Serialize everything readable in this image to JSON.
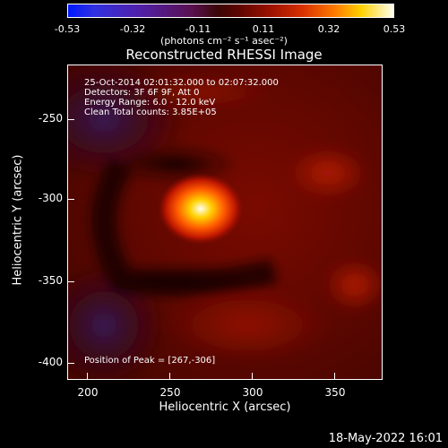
{
  "colorbar": {
    "ticks": [
      "-0.53",
      "-0.32",
      "-0.11",
      "0.11",
      "0.32",
      "0.53"
    ],
    "units": "(photons cm⁻² s⁻¹ asec⁻²)"
  },
  "title": "Reconstructed RHESSI Image",
  "info": {
    "time_range": "25-Oct-2014 02:01:32.000 to 02:07:32.000",
    "detectors": "Detectors: 3F 6F 9F, Att 0",
    "energy": "Energy Range: 6.0 - 12.0 keV",
    "clean_counts": "Clean    Total counts: 3.85E+05",
    "peak": "Position of Peak = [267,-306]"
  },
  "axes": {
    "xlabel": "Heliocentric X (arcsec)",
    "ylabel": "Heliocentric Y (arcsec)",
    "xticks": [
      "200",
      "250",
      "300",
      "350"
    ],
    "yticks": [
      "-250",
      "-300",
      "-350",
      "-400"
    ],
    "xlim": [
      188,
      380
    ],
    "ylim": [
      -410,
      -218
    ]
  },
  "footer_date": "18-May-2022 16:01",
  "colors": {
    "background": "#000000",
    "text": "#ffffff"
  }
}
